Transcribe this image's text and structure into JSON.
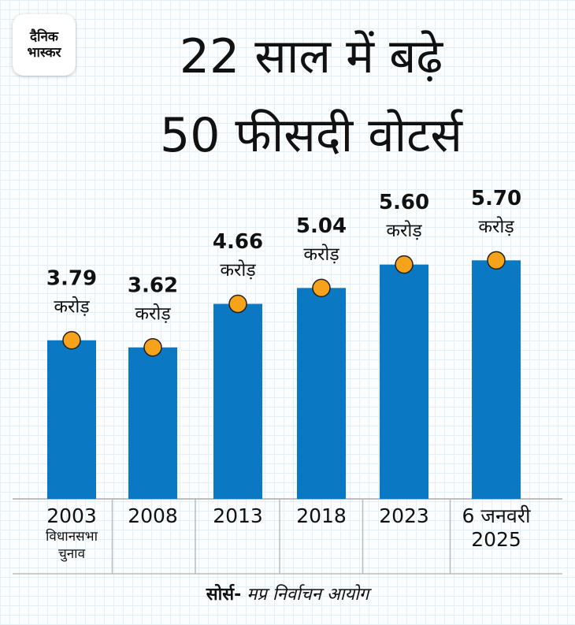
{
  "logo": {
    "line1": "दैनिक",
    "line2": "भास्कर"
  },
  "chart_data": {
    "type": "bar",
    "title_lines": [
      "22 साल में बढ़े",
      "50 फीसदी वोटर्स"
    ],
    "categories": [
      "2003",
      "2008",
      "2013",
      "2018",
      "2023",
      "6 जनवरी 2025"
    ],
    "category_notes": [
      "विधानसभा चुनाव",
      null,
      null,
      null,
      null,
      null
    ],
    "values": [
      3.79,
      3.62,
      4.66,
      5.04,
      5.6,
      5.7
    ],
    "value_labels": [
      "3.79",
      "3.62",
      "4.66",
      "5.04",
      "5.60",
      "5.70"
    ],
    "unit": "करोड़",
    "color": "#0a78c2",
    "marker_color": "#f7a21b"
  },
  "source_label": "सोर्स-",
  "source": "मप्र निर्वाचन आयोग"
}
